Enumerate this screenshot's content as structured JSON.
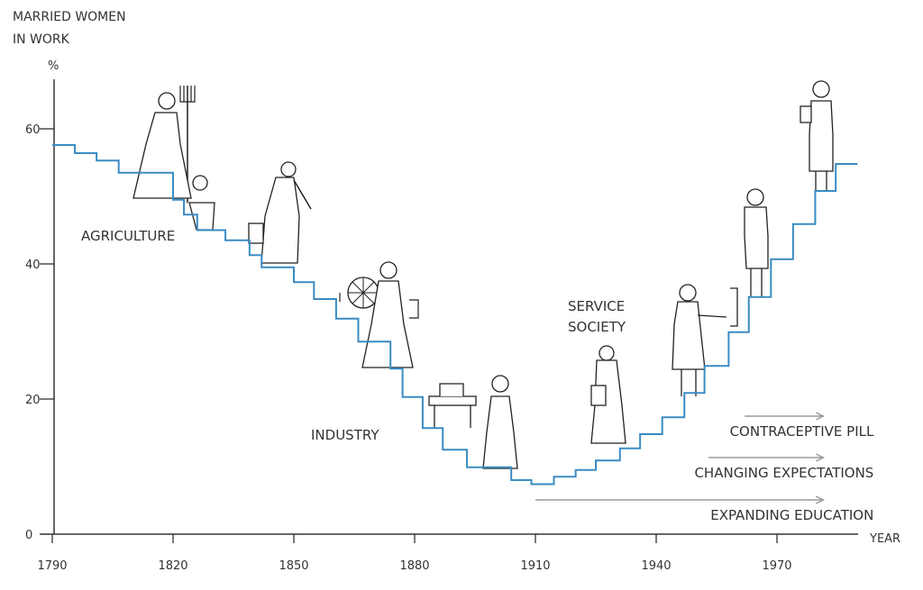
{
  "chart_data": {
    "type": "line",
    "step": true,
    "title": "MARRIED WOMEN IN WORK",
    "title_lines": [
      "MARRIED WOMEN",
      "IN WORK"
    ],
    "ylabel": "%",
    "xlabel": "YEAR",
    "xlim": [
      1790,
      1990
    ],
    "ylim": [
      0,
      67
    ],
    "x_ticks": [
      1790,
      1820,
      1850,
      1880,
      1910,
      1940,
      1970
    ],
    "x_tick_labels": [
      "1790",
      "1820",
      "1850",
      "1880",
      "1910",
      "1940",
      "1970"
    ],
    "y_ticks": [
      0,
      20,
      40,
      60
    ],
    "y_tick_labels": [
      "0",
      "20",
      "40",
      "60"
    ],
    "grid": false,
    "series": [
      {
        "name": "Married women in work (%)",
        "color": "#3a8cc4",
        "x": [
          1790,
          1795.6,
          1801,
          1806.5,
          1820,
          1822.7,
          1826,
          1833,
          1839,
          1842,
          1850,
          1855,
          1860.5,
          1866,
          1874,
          1877,
          1882,
          1887,
          1893,
          1904,
          1909,
          1914.6,
          1920,
          1925,
          1931,
          1936,
          1941.5,
          1947,
          1952,
          1958,
          1963,
          1968.5,
          1974,
          1979.5,
          1984.6
        ],
        "y": [
          57.6,
          56.4,
          55.3,
          53.5,
          49.5,
          47.3,
          45.0,
          43.5,
          41.3,
          39.5,
          37.3,
          34.8,
          31.9,
          28.5,
          24.5,
          20.3,
          15.7,
          12.5,
          9.9,
          8.0,
          7.4,
          8.5,
          9.5,
          10.9,
          12.7,
          14.8,
          17.3,
          20.9,
          24.9,
          29.9,
          35.1,
          40.7,
          45.9,
          50.8,
          54.8
        ],
        "x_end": 1990
      }
    ],
    "annotations": [
      {
        "text": "AGRICULTURE",
        "x": 1810,
        "y": 45
      },
      {
        "text": "INDUSTRY",
        "x": 1870,
        "y": 15
      },
      {
        "text": "SERVICE SOCIETY",
        "lines": [
          "SERVICE",
          "SOCIETY"
        ],
        "x": 1923,
        "y": 32
      }
    ],
    "arrows": [
      {
        "text": "CONTRACEPTIVE PILL",
        "from": 1962,
        "to": 1990
      },
      {
        "text": "CHANGING EXPECTATIONS",
        "from": 1953,
        "to": 1990
      },
      {
        "text": "EXPANDING EDUCATION",
        "from": 1910,
        "to": 1990
      }
    ],
    "arrow_color": "#9a9a9a"
  }
}
